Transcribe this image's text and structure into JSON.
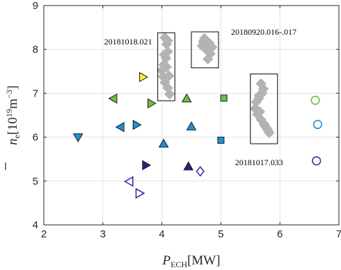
{
  "chart_data": {
    "type": "scatter",
    "title": "",
    "xlabel": {
      "sym": "P",
      "sub": "ECH",
      "unit": "[MW]"
    },
    "ylabel": {
      "sym": "n",
      "sub": "e",
      "unit_pre": "[10",
      "unit_exp": "19",
      "unit_mid": "m",
      "unit_exp2": "−3",
      "unit_post": "]"
    },
    "xlim": [
      2,
      7
    ],
    "ylim": [
      4,
      9
    ],
    "xticks": [
      "2",
      "3",
      "4",
      "5",
      "6",
      "7"
    ],
    "yticks": [
      "4",
      "5",
      "6",
      "7",
      "8",
      "9"
    ],
    "grid": true,
    "points": [
      {
        "x": 2.58,
        "y": 6.0,
        "marker": "triangle-down",
        "color": "#1f8fd6",
        "filled": true
      },
      {
        "x": 3.18,
        "y": 6.88,
        "marker": "triangle-left",
        "color": "#6abf45",
        "filled": true
      },
      {
        "x": 3.3,
        "y": 6.23,
        "marker": "triangle-left",
        "color": "#1f8fd6",
        "filled": true
      },
      {
        "x": 3.45,
        "y": 4.99,
        "marker": "triangle-left",
        "color": "#3e2fa8",
        "filled": false
      },
      {
        "x": 3.57,
        "y": 6.28,
        "marker": "triangle-right",
        "color": "#1f8fd6",
        "filled": true
      },
      {
        "x": 3.62,
        "y": 4.72,
        "marker": "triangle-right",
        "color": "#3e2fa8",
        "filled": false
      },
      {
        "x": 3.68,
        "y": 7.37,
        "marker": "triangle-right",
        "color": "#f2f23a",
        "filled": true
      },
      {
        "x": 3.73,
        "y": 5.36,
        "marker": "triangle-right",
        "color": "#2c1f80",
        "filled": true
      },
      {
        "x": 3.82,
        "y": 6.77,
        "marker": "triangle-right",
        "color": "#6abf45",
        "filled": true
      },
      {
        "x": 4.03,
        "y": 5.85,
        "marker": "triangle-up",
        "color": "#1f8fd6",
        "filled": true
      },
      {
        "x": 4.42,
        "y": 6.88,
        "marker": "triangle-up",
        "color": "#6abf45",
        "filled": true
      },
      {
        "x": 4.45,
        "y": 5.33,
        "marker": "triangle-up",
        "color": "#2c1f80",
        "filled": true
      },
      {
        "x": 4.5,
        "y": 6.24,
        "marker": "triangle-up",
        "color": "#1f8fd6",
        "filled": true
      },
      {
        "x": 4.65,
        "y": 5.22,
        "marker": "diamond",
        "color": "#3e2fa8",
        "filled": false
      },
      {
        "x": 5.05,
        "y": 6.89,
        "marker": "square",
        "color": "#6abf45",
        "filled": true
      },
      {
        "x": 5.0,
        "y": 5.93,
        "marker": "square",
        "color": "#1f8fd6",
        "filled": true
      },
      {
        "x": 6.6,
        "y": 6.84,
        "marker": "circle",
        "color": "#6abf45",
        "filled": false
      },
      {
        "x": 6.64,
        "y": 6.29,
        "marker": "circle",
        "color": "#1f8fd6",
        "filled": false
      },
      {
        "x": 6.62,
        "y": 5.46,
        "marker": "circle",
        "color": "#3e2fa8",
        "filled": false
      }
    ],
    "highlighted_sets": [
      {
        "label": "20181018.021",
        "label_pos": "left",
        "color": "#b3b3b3",
        "box": {
          "x0": 3.93,
          "x1": 4.22,
          "y0": 6.83,
          "y1": 8.38
        },
        "points": [
          [
            4.05,
            8.27
          ],
          [
            4.08,
            8.12
          ],
          [
            4.1,
            7.95
          ],
          [
            4.07,
            7.8
          ],
          [
            4.03,
            7.65
          ],
          [
            4.0,
            7.52
          ],
          [
            4.02,
            7.38
          ],
          [
            4.05,
            7.25
          ],
          [
            4.1,
            7.12
          ],
          [
            4.13,
            6.98
          ],
          [
            4.1,
            8.2
          ],
          [
            4.04,
            7.88
          ],
          [
            4.08,
            7.6
          ],
          [
            4.12,
            7.4
          ]
        ]
      },
      {
        "label": "20180920.016-.017",
        "label_pos": "right",
        "color": "#b3b3b3",
        "box": {
          "x0": 4.5,
          "x1": 4.96,
          "y0": 7.58,
          "y1": 8.4
        },
        "points": [
          [
            4.72,
            8.25
          ],
          [
            4.8,
            8.15
          ],
          [
            4.68,
            8.08
          ],
          [
            4.75,
            8.0
          ],
          [
            4.82,
            7.9
          ],
          [
            4.78,
            7.78
          ],
          [
            4.7,
            8.18
          ],
          [
            4.85,
            8.05
          ]
        ]
      },
      {
        "label": "20181017.033",
        "label_pos": "bottom",
        "color": "#b3b3b3",
        "box": {
          "x0": 5.5,
          "x1": 5.96,
          "y0": 5.85,
          "y1": 7.44
        },
        "points": [
          [
            5.68,
            7.22
          ],
          [
            5.72,
            7.1
          ],
          [
            5.65,
            6.95
          ],
          [
            5.6,
            6.8
          ],
          [
            5.58,
            6.65
          ],
          [
            5.62,
            6.52
          ],
          [
            5.68,
            6.4
          ],
          [
            5.73,
            6.3
          ],
          [
            5.78,
            6.2
          ],
          [
            5.82,
            6.1
          ],
          [
            5.7,
            7.0
          ],
          [
            5.64,
            6.88
          ],
          [
            5.66,
            6.58
          ],
          [
            5.75,
            6.25
          ],
          [
            5.8,
            6.15
          ]
        ]
      }
    ]
  }
}
